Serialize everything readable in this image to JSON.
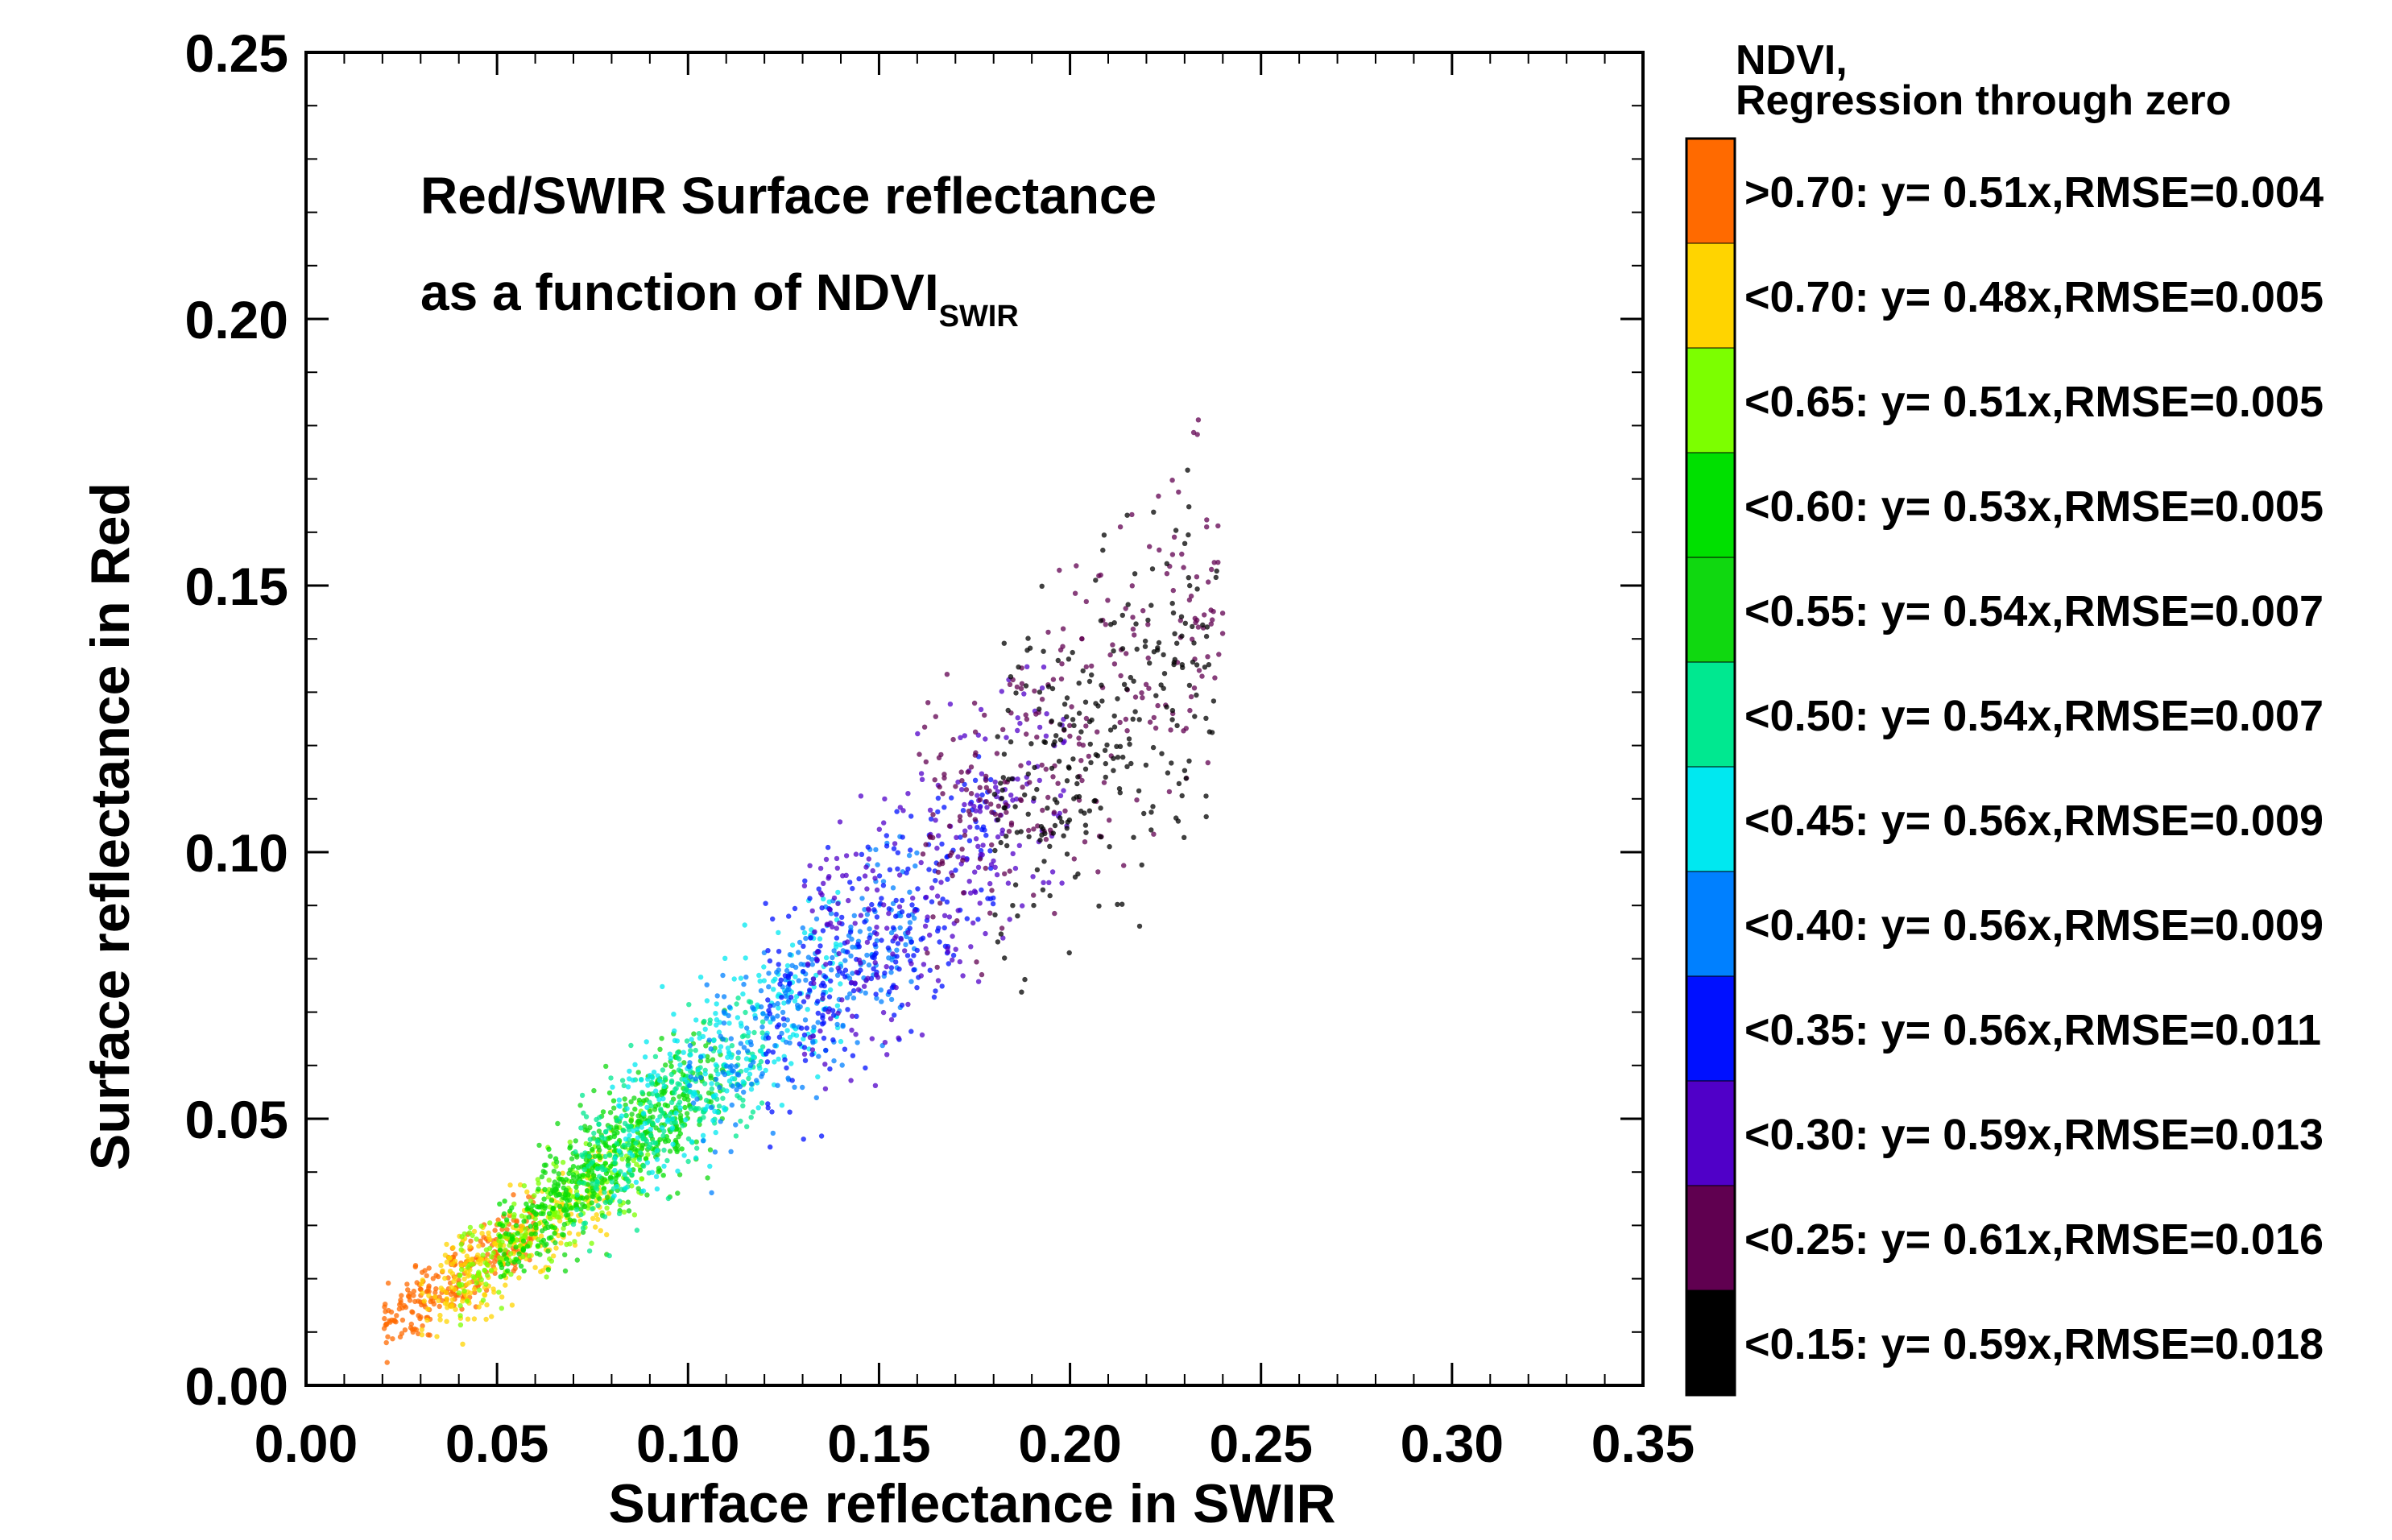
{
  "chart_data": {
    "type": "scatter",
    "title_line1": "Red/SWIR Surface reflectance",
    "title_line2_prefix": "as a function of NDVI",
    "title_line2_subscript": "SWIR",
    "xlabel": "Surface reflectance in SWIR",
    "ylabel": "Surface reflectance in Red",
    "xlim": [
      0.0,
      0.35
    ],
    "ylim": [
      0.0,
      0.25
    ],
    "xticks": [
      "0.00",
      "0.05",
      "0.10",
      "0.15",
      "0.20",
      "0.25",
      "0.30",
      "0.35"
    ],
    "yticks": [
      "0.00",
      "0.05",
      "0.10",
      "0.15",
      "0.20",
      "0.25"
    ],
    "legend_title_line1": "NDVI,",
    "legend_title_line2": "Regression through zero",
    "legend_placement": "right",
    "series": [
      {
        "label": ">0.70: y= 0.51x,RMSE=0.004",
        "slope": 0.51,
        "rmse": 0.004,
        "color": "#ff6a00",
        "x_range": [
          0.02,
          0.06
        ]
      },
      {
        "label": "<0.70: y= 0.48x,RMSE=0.005",
        "slope": 0.48,
        "rmse": 0.005,
        "color": "#ffd400",
        "x_range": [
          0.03,
          0.08
        ]
      },
      {
        "label": "<0.65: y= 0.51x,RMSE=0.005",
        "slope": 0.51,
        "rmse": 0.005,
        "color": "#7cff00",
        "x_range": [
          0.04,
          0.09
        ]
      },
      {
        "label": "<0.60: y= 0.53x,RMSE=0.005",
        "slope": 0.53,
        "rmse": 0.005,
        "color": "#00e000",
        "x_range": [
          0.05,
          0.1
        ]
      },
      {
        "label": "<0.55: y= 0.54x,RMSE=0.007",
        "slope": 0.54,
        "rmse": 0.007,
        "color": "#10d810",
        "x_range": [
          0.06,
          0.11
        ]
      },
      {
        "label": "<0.50: y= 0.54x,RMSE=0.007",
        "slope": 0.54,
        "rmse": 0.007,
        "color": "#00e890",
        "x_range": [
          0.07,
          0.12
        ]
      },
      {
        "label": "<0.45: y= 0.56x,RMSE=0.009",
        "slope": 0.56,
        "rmse": 0.009,
        "color": "#00e8f0",
        "x_range": [
          0.08,
          0.14
        ]
      },
      {
        "label": "<0.40: y= 0.56x,RMSE=0.009",
        "slope": 0.56,
        "rmse": 0.009,
        "color": "#0080ff",
        "x_range": [
          0.1,
          0.16
        ]
      },
      {
        "label": "<0.35: y= 0.56x,RMSE=0.011",
        "slope": 0.56,
        "rmse": 0.011,
        "color": "#0010ff",
        "x_range": [
          0.12,
          0.18
        ]
      },
      {
        "label": "<0.30: y= 0.59x,RMSE=0.013",
        "slope": 0.59,
        "rmse": 0.013,
        "color": "#5000c8",
        "x_range": [
          0.13,
          0.2
        ]
      },
      {
        "label": "<0.25: y= 0.61x,RMSE=0.016",
        "slope": 0.61,
        "rmse": 0.016,
        "color": "#600050",
        "x_range": [
          0.16,
          0.24
        ]
      },
      {
        "label": "<0.15: y= 0.59x,RMSE=0.018",
        "slope": 0.59,
        "rmse": 0.018,
        "color": "#000000",
        "x_range": [
          0.18,
          0.24
        ]
      }
    ]
  }
}
